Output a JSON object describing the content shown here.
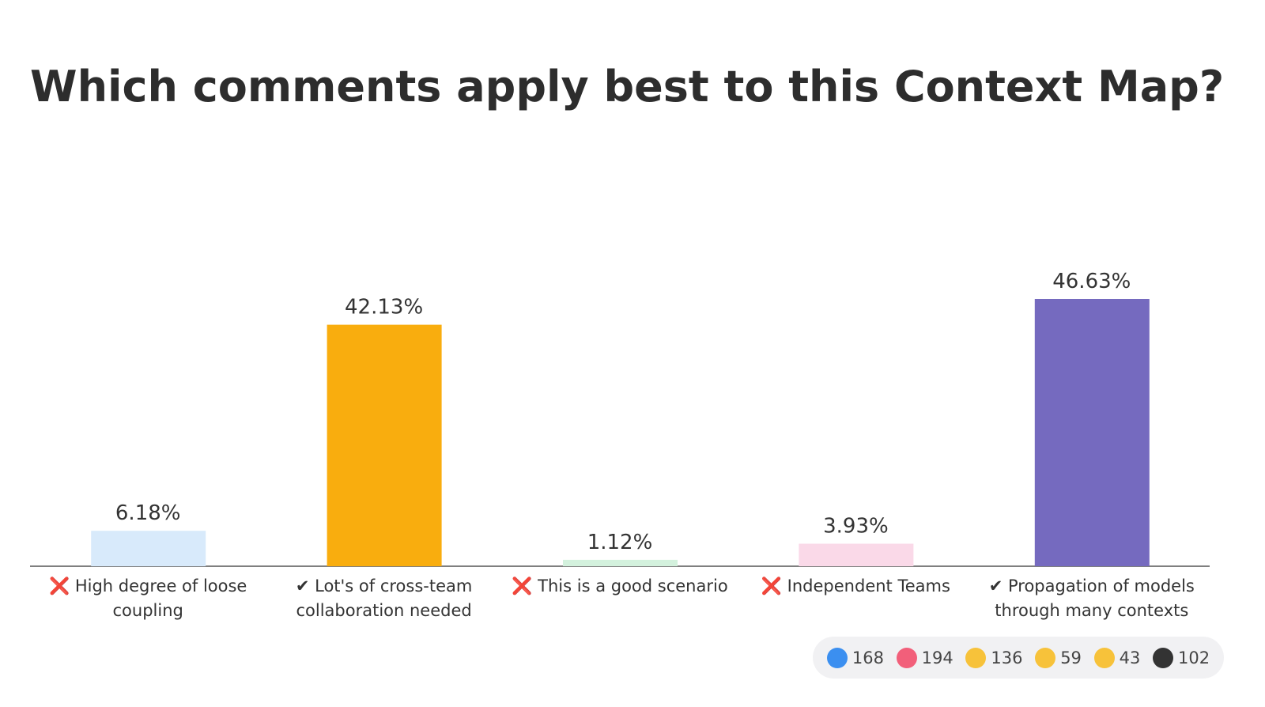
{
  "chart_data": {
    "type": "bar",
    "title": "Which comments apply best to this Context Map?",
    "categories": [
      "❌ High degree of loose coupling",
      "✔ Lot's of cross-team collaboration needed",
      "❌ This is a good scenario",
      "❌ Independent Teams",
      "✔ Propagation of models through many contexts"
    ],
    "values": [
      6.18,
      42.13,
      1.12,
      3.93,
      46.63
    ],
    "value_labels": [
      "6.18%",
      "42.13%",
      "1.12%",
      "3.93%",
      "46.63%"
    ],
    "colors": [
      "#d8eafb",
      "#f9ad0e",
      "#d3f1dd",
      "#fad9e8",
      "#756abf"
    ]
  },
  "reactions": [
    {
      "name": "thumbs-up",
      "count": 168
    },
    {
      "name": "heart",
      "count": 194
    },
    {
      "name": "laugh",
      "count": 136
    },
    {
      "name": "surprised",
      "count": 59
    },
    {
      "name": "sad",
      "count": 43
    },
    {
      "name": "raised-hand",
      "count": 102
    }
  ]
}
